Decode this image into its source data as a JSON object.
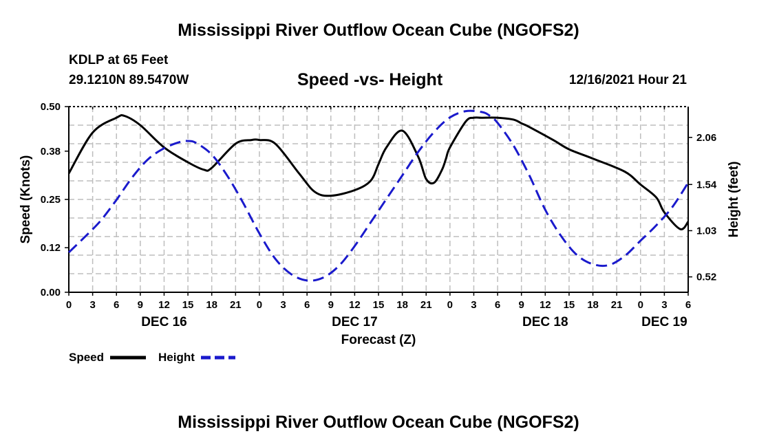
{
  "header": {
    "title": "Mississippi River Outflow Ocean Cube (NGOFS2)",
    "station": "KDLP at 65 Feet",
    "coords": "29.1210N  89.5470W",
    "chart_title": "Speed -vs- Height",
    "forecast_time": "12/16/2021 Hour 21"
  },
  "footer": {
    "title": "Mississippi River Outflow Ocean Cube (NGOFS2)"
  },
  "legend": {
    "speed_label": "Speed",
    "height_label": "Height"
  },
  "colors": {
    "speed": "#000000",
    "height": "#1a1acc",
    "grid": "#bdbdbd"
  },
  "chart_data": {
    "type": "line",
    "title": "Speed -vs- Height",
    "xlabel": "Forecast (Z)",
    "ylabel": "Speed (Knots)",
    "y2label": "Height (feet)",
    "xlim": [
      0,
      78
    ],
    "ylim": [
      0,
      0.5
    ],
    "y2lim": [
      0.35,
      2.4
    ],
    "x_ticks": [
      0,
      3,
      6,
      9,
      12,
      15,
      18,
      21,
      24,
      27,
      30,
      33,
      36,
      39,
      42,
      45,
      48,
      51,
      54,
      57,
      60,
      63,
      66,
      69,
      72,
      75,
      78
    ],
    "x_tick_labels": [
      "0",
      "3",
      "6",
      "9",
      "12",
      "15",
      "18",
      "21",
      "0",
      "3",
      "6",
      "9",
      "12",
      "15",
      "18",
      "21",
      "0",
      "3",
      "6",
      "9",
      "12",
      "15",
      "18",
      "21",
      "0",
      "3",
      "6"
    ],
    "day_labels": [
      {
        "hour": 12,
        "label": "DEC 16"
      },
      {
        "hour": 36,
        "label": "DEC 17"
      },
      {
        "hour": 60,
        "label": "DEC 18"
      },
      {
        "hour": 75,
        "label": "DEC 19"
      }
    ],
    "y_ticks": [
      0.0,
      0.12,
      0.25,
      0.38,
      0.5
    ],
    "y_tick_labels": [
      "0.00",
      "0.12",
      "0.25",
      "0.38",
      "0.50"
    ],
    "y2_ticks": [
      0.52,
      1.03,
      1.54,
      2.06
    ],
    "y2_tick_labels": [
      "0.52",
      "1.03",
      "1.54",
      "2.06"
    ],
    "series": [
      {
        "name": "Speed",
        "axis": "left",
        "style": "solid",
        "x": [
          0,
          3,
          6,
          7,
          9,
          12,
          15,
          17,
          18,
          21,
          23,
          24,
          26,
          29,
          31,
          33,
          36,
          38,
          39,
          40,
          42,
          44,
          45,
          46,
          47,
          47.5,
          48,
          50,
          51,
          52,
          54,
          56,
          57,
          58,
          61,
          63,
          66,
          70,
          72,
          74,
          75,
          77,
          78
        ],
        "y": [
          0.32,
          0.43,
          0.47,
          0.475,
          0.45,
          0.39,
          0.35,
          0.33,
          0.335,
          0.4,
          0.41,
          0.41,
          0.4,
          0.32,
          0.27,
          0.26,
          0.275,
          0.3,
          0.345,
          0.39,
          0.435,
          0.365,
          0.305,
          0.295,
          0.33,
          0.36,
          0.39,
          0.46,
          0.47,
          0.47,
          0.47,
          0.465,
          0.455,
          0.445,
          0.41,
          0.385,
          0.36,
          0.325,
          0.29,
          0.255,
          0.215,
          0.17,
          0.19
        ]
      },
      {
        "name": "Height",
        "axis": "right",
        "style": "dashed",
        "x": [
          0,
          2,
          4,
          6,
          8,
          10,
          12,
          14,
          15,
          16,
          18,
          20,
          22,
          24,
          26,
          28,
          30,
          32,
          34,
          36,
          38,
          40,
          42,
          44,
          46,
          48,
          50,
          52,
          53,
          54,
          56,
          58,
          60,
          62,
          64,
          66,
          68,
          70,
          72,
          74,
          76,
          78
        ],
        "y": [
          0.79,
          0.96,
          1.14,
          1.37,
          1.62,
          1.82,
          1.94,
          2.01,
          2.02,
          2.0,
          1.87,
          1.63,
          1.33,
          1.0,
          0.72,
          0.55,
          0.48,
          0.51,
          0.64,
          0.86,
          1.12,
          1.38,
          1.64,
          1.9,
          2.12,
          2.28,
          2.35,
          2.34,
          2.3,
          2.22,
          1.97,
          1.64,
          1.26,
          0.97,
          0.76,
          0.66,
          0.65,
          0.75,
          0.92,
          1.09,
          1.29,
          1.56
        ]
      }
    ]
  }
}
